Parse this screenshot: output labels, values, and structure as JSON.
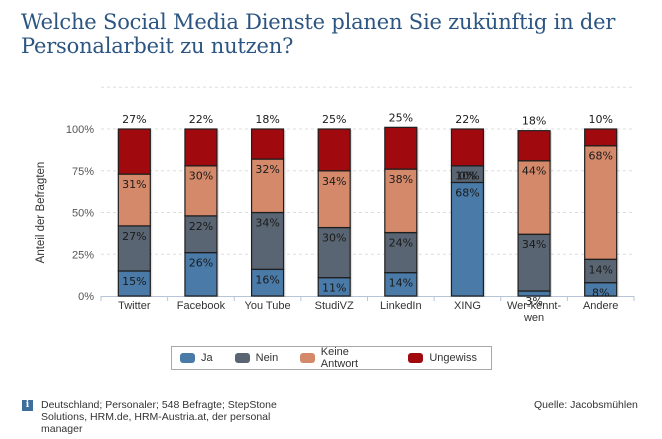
{
  "title": "Welche Social Media Dienste planen Sie zukünftig in der Personalarbeit zu nutzen?",
  "chart_data": {
    "type": "bar",
    "stacked": true,
    "title": "Welche Social Media Dienste planen Sie zukünftig in der Personalarbeit zu nutzen?",
    "xlabel": "",
    "ylabel": "Anteil der Befragten",
    "ylim": [
      0,
      1.25
    ],
    "yticks": [
      0,
      0.25,
      0.5,
      0.75,
      1.0
    ],
    "ytick_labels": [
      "0%",
      "25%",
      "50%",
      "75%",
      "100%"
    ],
    "grid": true,
    "legend_position": "bottom",
    "categories": [
      "Twitter",
      "Facebook",
      "You Tube",
      "StudiVZ",
      "LinkedIn",
      "XING",
      "Wer-kennt-wen",
      "Andere"
    ],
    "category_labels": [
      [
        "Twitter"
      ],
      [
        "Facebook"
      ],
      [
        "You Tube"
      ],
      [
        "StudiVZ"
      ],
      [
        "LinkedIn"
      ],
      [
        "XING"
      ],
      [
        "Wer-kennt-",
        "wen"
      ],
      [
        "Andere"
      ]
    ],
    "series": [
      {
        "name": "Ja",
        "color": "#4a7aa7",
        "values": [
          15,
          26,
          16,
          11,
          14,
          68,
          3,
          8
        ]
      },
      {
        "name": "Nein",
        "color": "#596572",
        "values": [
          27,
          22,
          34,
          30,
          24,
          10,
          34,
          14
        ]
      },
      {
        "name": "Keine Antwort",
        "color": "#d4896a",
        "values": [
          31,
          30,
          32,
          34,
          38,
          0,
          44,
          68
        ]
      },
      {
        "name": "Ungewiss",
        "color": "#a00a0e",
        "values": [
          27,
          22,
          18,
          25,
          25,
          22,
          18,
          10
        ]
      }
    ],
    "data_labels": [
      [
        "15%",
        "27%",
        "31%",
        "27%"
      ],
      [
        "26%",
        "22%",
        "30%",
        "22%"
      ],
      [
        "16%",
        "34%",
        "32%",
        "18%"
      ],
      [
        "11%",
        "30%",
        "34%",
        "25%"
      ],
      [
        "14%",
        "24%",
        "38%",
        "25%"
      ],
      [
        "68%",
        "10%",
        "0%",
        "22%"
      ],
      [
        "3%",
        "34%",
        "44%",
        "18%"
      ],
      [
        "8%",
        "14%",
        "68%",
        "10%"
      ]
    ]
  },
  "legend": {
    "items": [
      {
        "label": "Ja",
        "color": "#4a7aa7"
      },
      {
        "label": "Nein",
        "color": "#596572"
      },
      {
        "label": "Keine Antwort",
        "color": "#d4896a"
      },
      {
        "label": "Ungewiss",
        "color": "#a00a0e"
      }
    ]
  },
  "footer": {
    "info_icon": "i",
    "note": "Deutschland; Personaler; 548 Befragte; StepStone Solutions, HRM.de, HRM-Austria.at, der personal manager",
    "source": "Quelle: Jacobsmühlen"
  }
}
